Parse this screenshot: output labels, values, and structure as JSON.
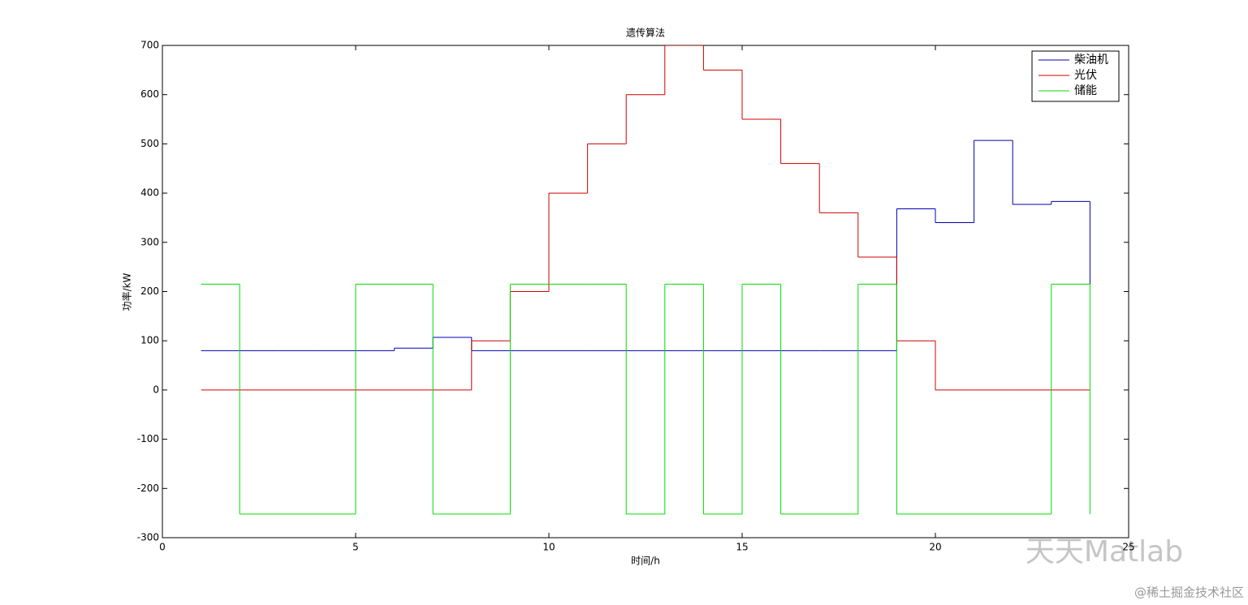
{
  "chart_data": {
    "type": "stairs",
    "title": "遗传算法",
    "xlabel": "时间/h",
    "ylabel": "功率/kW",
    "x": [
      1,
      2,
      3,
      4,
      5,
      6,
      7,
      8,
      9,
      10,
      11,
      12,
      13,
      14,
      15,
      16,
      17,
      18,
      19,
      20,
      21,
      22,
      23,
      24
    ],
    "series": [
      {
        "name": "柴油机",
        "color": "#0000b0",
        "values": [
          80,
          80,
          80,
          80,
          80,
          85,
          107,
          80,
          80,
          80,
          80,
          80,
          80,
          80,
          80,
          80,
          80,
          80,
          368,
          340,
          507,
          377,
          383,
          215
        ]
      },
      {
        "name": "光伏",
        "color": "#d00000",
        "values": [
          0,
          0,
          0,
          0,
          0,
          0,
          0,
          100,
          200,
          400,
          500,
          600,
          700,
          650,
          550,
          460,
          360,
          270,
          100,
          0,
          0,
          0,
          0,
          0
        ]
      },
      {
        "name": "储能",
        "color": "#00dd00",
        "values": [
          215,
          -252,
          -252,
          -252,
          215,
          215,
          -252,
          -252,
          215,
          215,
          215,
          -252,
          215,
          -252,
          215,
          -252,
          -252,
          215,
          -252,
          -252,
          -252,
          -252,
          215,
          -252
        ]
      }
    ],
    "xlim": [
      0,
      25
    ],
    "xticks": [
      0,
      5,
      10,
      15,
      20,
      25
    ],
    "ylim": [
      -300,
      700
    ],
    "yticks": [
      -300,
      -200,
      -100,
      0,
      100,
      200,
      300,
      400,
      500,
      600,
      700
    ],
    "legend": "upper right",
    "watermarks": [
      "天天Matlab",
      "@稀土掘金技术社区"
    ]
  }
}
